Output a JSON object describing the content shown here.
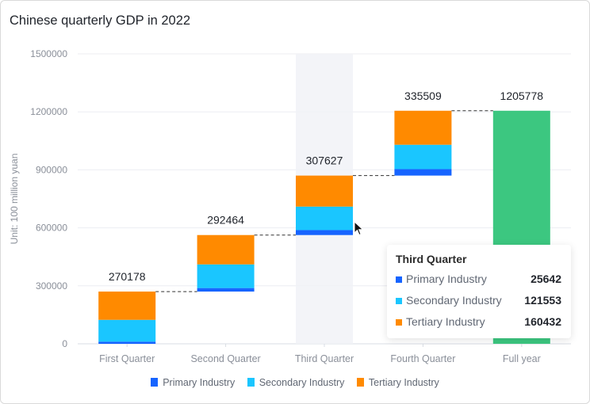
{
  "chart_data": {
    "type": "bar",
    "subtype": "stacked-waterfall",
    "title": "Chinese quarterly GDP in 2022",
    "xlabel": "",
    "ylabel": "Unit: 100 million yuan",
    "ylim": [
      0,
      1500000
    ],
    "yticks": [
      "0",
      "300000",
      "600000",
      "900000",
      "1200000",
      "1500000"
    ],
    "ytick_values": [
      0,
      300000,
      600000,
      900000,
      1200000,
      1500000
    ],
    "grid": true,
    "legend_position": "bottom",
    "categories": [
      "First Quarter",
      "Second Quarter",
      "Third Quarter",
      "Fourth Quarter",
      "Full year"
    ],
    "series": [
      {
        "name": "Primary Industry",
        "color": "#1664ff",
        "values": [
          10954,
          18183,
          25642,
          33575
        ]
      },
      {
        "name": "Secondary Industry",
        "color": "#1ac6ff",
        "values": [
          112981,
          122450,
          121553,
          126016
        ]
      },
      {
        "name": "Tertiary Industry",
        "color": "#ff8a00",
        "values": [
          146243,
          151831,
          160432,
          175918
        ]
      }
    ],
    "totals": [
      270178,
      292464,
      307627,
      335509
    ],
    "total_labels": [
      "270178",
      "292464",
      "307627",
      "335509",
      "1205778"
    ],
    "full_year": {
      "value": 1205778,
      "color": "#3cc780"
    },
    "highlighted_category": "Third Quarter"
  },
  "tooltip": {
    "title": "Third Quarter",
    "rows": [
      {
        "label": "Primary Industry",
        "value": "25642",
        "color": "#1664ff"
      },
      {
        "label": "Secondary Industry",
        "value": "121553",
        "color": "#1ac6ff"
      },
      {
        "label": "Tertiary Industry",
        "value": "160432",
        "color": "#ff8a00"
      }
    ]
  },
  "legend": [
    {
      "label": "Primary Industry",
      "color": "#1664ff"
    },
    {
      "label": "Secondary Industry",
      "color": "#1ac6ff"
    },
    {
      "label": "Tertiary Industry",
      "color": "#ff8a00"
    }
  ]
}
